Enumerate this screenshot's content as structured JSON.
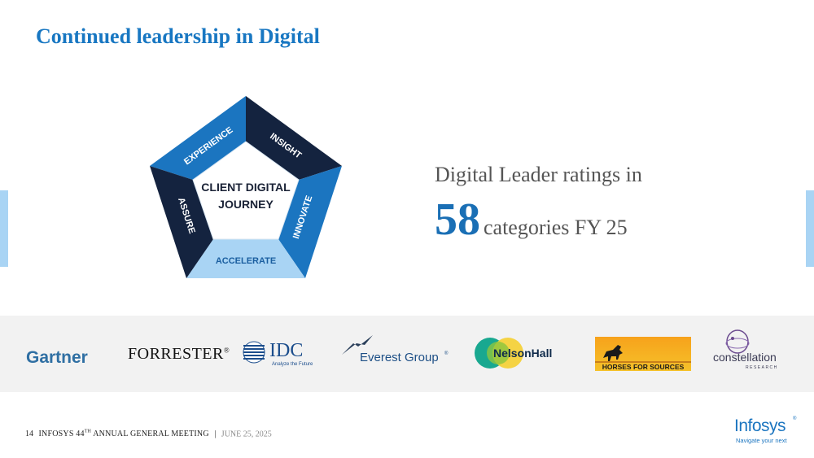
{
  "slide": {
    "title": "Continued leadership in Digital",
    "pentagon": {
      "center_line1": "CLIENT DIGITAL",
      "center_line2": "JOURNEY",
      "segments": [
        "EXPERIENCE",
        "INSIGHT",
        "INNOVATE",
        "ACCELERATE",
        "ASSURE"
      ]
    },
    "rating": {
      "line1": "Digital Leader ratings in",
      "number": "58",
      "suffix": "categories FY 25"
    },
    "logos": {
      "gartner": "Gartner",
      "forrester": "FORRESTER",
      "forrester_mark": "®",
      "idc": "IDC",
      "idc_tagline": "Analyze the Future",
      "everest": "Everest Group",
      "everest_mark": "®",
      "nelsonhall": "NelsonHall",
      "hfs": "HORSES FOR SOURCES",
      "constellation": "constellation",
      "constellation_sub": "RESEARCH"
    },
    "footer": {
      "page_number": "14",
      "event_prefix": "INFOSYS 44",
      "event_sup": "TH",
      "event_suffix": " ANNUAL GENERAL MEETING",
      "separator": "|",
      "date": "JUNE 25, 2025"
    },
    "brand": {
      "name": "Infosys",
      "mark": "®",
      "tagline": "Navigate your next"
    },
    "colors": {
      "title": "#1877c2",
      "dark_navy": "#14233f",
      "mid_blue": "#1b75c0",
      "light_blue": "#a9d4f4"
    }
  }
}
